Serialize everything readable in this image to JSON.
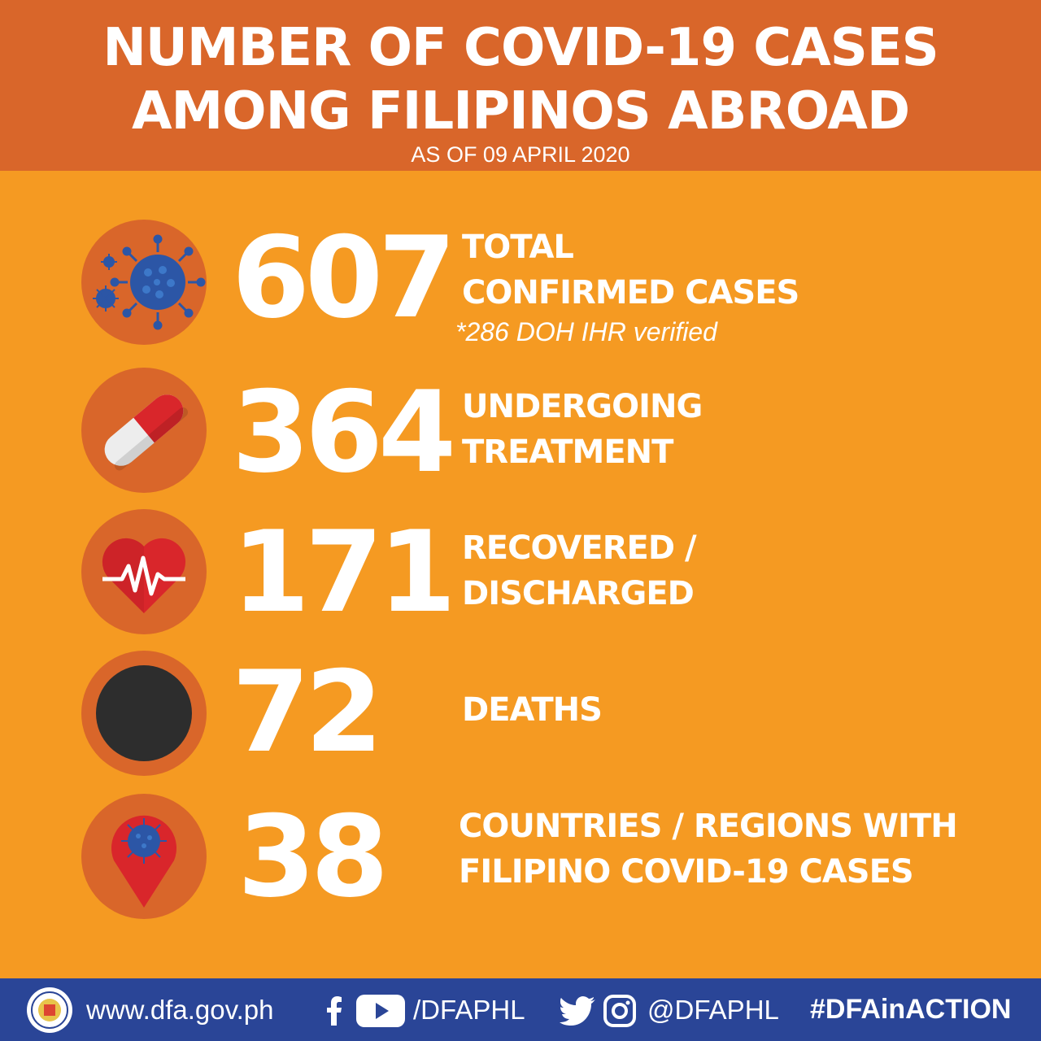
{
  "header": {
    "title_line1": "NUMBER OF COVID-19 CASES",
    "title_line2": "AMONG FILIPINOS ABROAD",
    "subtitle": "AS OF 09 APRIL 2020"
  },
  "stats": [
    {
      "value": "607",
      "label_line1": "TOTAL",
      "label_line2": "CONFIRMED CASES",
      "note": "*286 DOH IHR verified",
      "icon": "virus-icon"
    },
    {
      "value": "364",
      "label_line1": "UNDERGOING",
      "label_line2": "TREATMENT",
      "icon": "pill-capsule-icon"
    },
    {
      "value": "171",
      "label_line1": "RECOVERED /",
      "label_line2": "DISCHARGED",
      "icon": "heartbeat-icon"
    },
    {
      "value": "72",
      "label_line1": "DEATHS",
      "icon": "black-circle-icon"
    },
    {
      "value": "38",
      "label_line1": "COUNTRIES / REGIONS WITH",
      "label_line2": "FILIPINO COVID-19 CASES",
      "icon": "location-pin-virus-icon"
    }
  ],
  "footer": {
    "website": "www.dfa.gov.ph",
    "fb_yt_handle": "/DFAPHL",
    "tw_ig_handle": "@DFAPHL",
    "hashtag": "#DFAinACTION",
    "icons": [
      "dfa-seal-icon",
      "facebook-icon",
      "youtube-icon",
      "twitter-icon",
      "instagram-icon"
    ]
  },
  "colors": {
    "background": "#F59A22",
    "header": "#D9662A",
    "footer": "#2A4597",
    "virus_blue": "#2C56A6",
    "pill_red": "#D9262B",
    "heart_red": "#D9262B",
    "death_black": "#2D2D2D"
  }
}
